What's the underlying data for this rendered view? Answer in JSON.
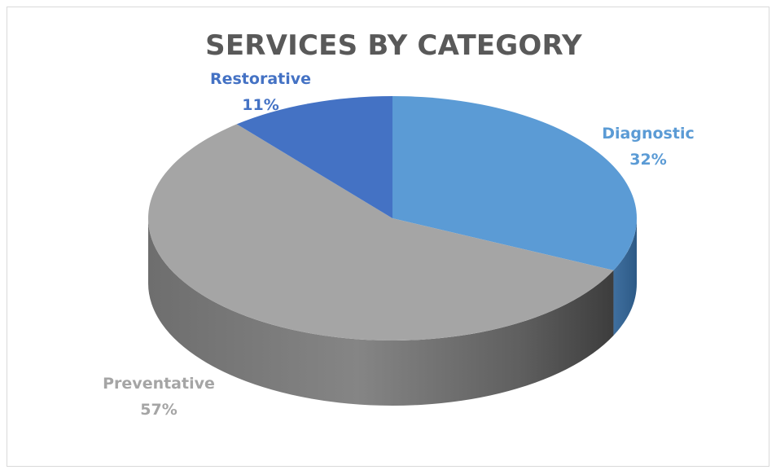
{
  "chart_data": {
    "type": "pie",
    "title": "SERVICES BY CATEGORY",
    "slices": [
      {
        "label": "Diagnostic",
        "value": 32,
        "display": "32%",
        "color": "#5b9bd5"
      },
      {
        "label": "Preventative",
        "value": 57,
        "display": "57%",
        "color": "#a5a5a5"
      },
      {
        "label": "Restorative",
        "value": 11,
        "display": "11%",
        "color": "#4472c4"
      }
    ],
    "style": "3d",
    "legend": "none",
    "data_labels": "category-and-percent"
  }
}
